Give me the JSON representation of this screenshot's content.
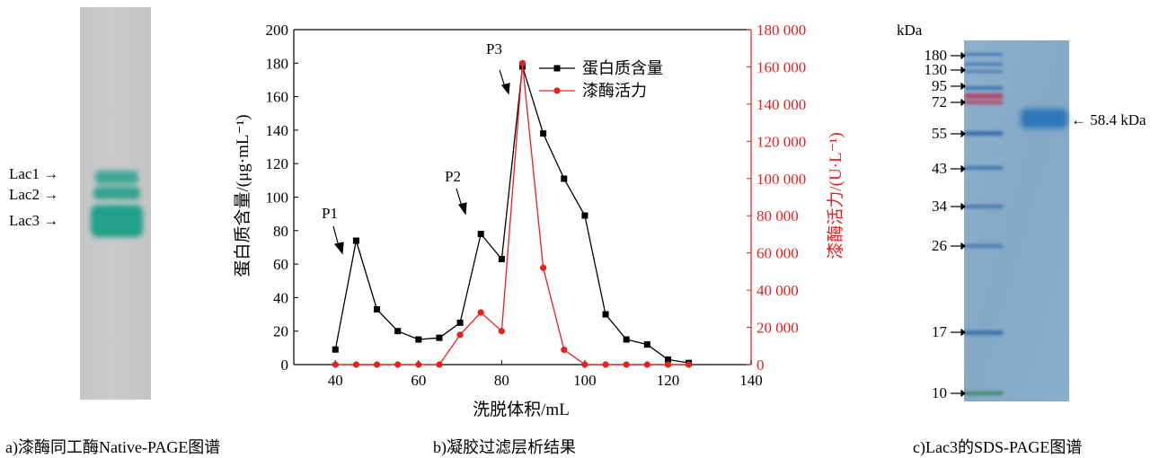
{
  "panel_a": {
    "caption": "a)漆酶同工酶Native-PAGE图谱",
    "labels": [
      "Lac1 →",
      "Lac2 →",
      "Lac3 →"
    ]
  },
  "panel_b": {
    "caption": "b)凝胶过滤层析结果",
    "peak_labels": [
      "P1",
      "P2",
      "P3"
    ]
  },
  "panel_c": {
    "caption": "c)Lac3的SDS-PAGE图谱",
    "unit_label": "kDa",
    "markers": [
      "180",
      "130",
      "95",
      "72",
      "55",
      "43",
      "34",
      "26",
      "17",
      "10"
    ],
    "band_label": "← 58.4 kDa"
  },
  "chart_data": {
    "type": "line",
    "xlabel": "洗脱体积/mL",
    "ylabel": "蛋白质含量/(μg·mL⁻¹)",
    "y2label": "漆酶活力/(U·L⁻¹)",
    "xlim": [
      30,
      140
    ],
    "ylim": [
      0,
      200
    ],
    "y2lim": [
      0,
      180000
    ],
    "x_ticks": [
      "40",
      "60",
      "80",
      "100",
      "120",
      "140"
    ],
    "y_ticks": [
      "0",
      "20",
      "40",
      "60",
      "80",
      "100",
      "120",
      "140",
      "160",
      "180",
      "200"
    ],
    "y2_ticks": [
      "0",
      "20 000",
      "40 000",
      "60 000",
      "80 000",
      "100 000",
      "120 000",
      "140 000",
      "160 000",
      "180 000"
    ],
    "legend_position": "top-right",
    "series": [
      {
        "name": "蛋白质含量",
        "axis": "left",
        "color": "#000000",
        "marker": "square",
        "x": [
          40,
          45,
          50,
          55,
          60,
          65,
          70,
          75,
          80,
          85,
          90,
          95,
          100,
          105,
          110,
          115,
          120,
          125
        ],
        "y": [
          9,
          74,
          33,
          20,
          15,
          16,
          25,
          78,
          63,
          178,
          138,
          111,
          89,
          30,
          15,
          12,
          3,
          1
        ]
      },
      {
        "name": "漆酶活力",
        "axis": "right",
        "color": "#e8201f",
        "marker": "circle",
        "x": [
          40,
          45,
          50,
          55,
          60,
          65,
          70,
          75,
          80,
          85,
          90,
          95,
          100,
          105,
          110,
          115,
          120,
          125
        ],
        "y": [
          0,
          0,
          0,
          0,
          0,
          0,
          16000,
          28000,
          18000,
          162000,
          52000,
          8000,
          0,
          0,
          0,
          0,
          0,
          0
        ]
      }
    ]
  }
}
